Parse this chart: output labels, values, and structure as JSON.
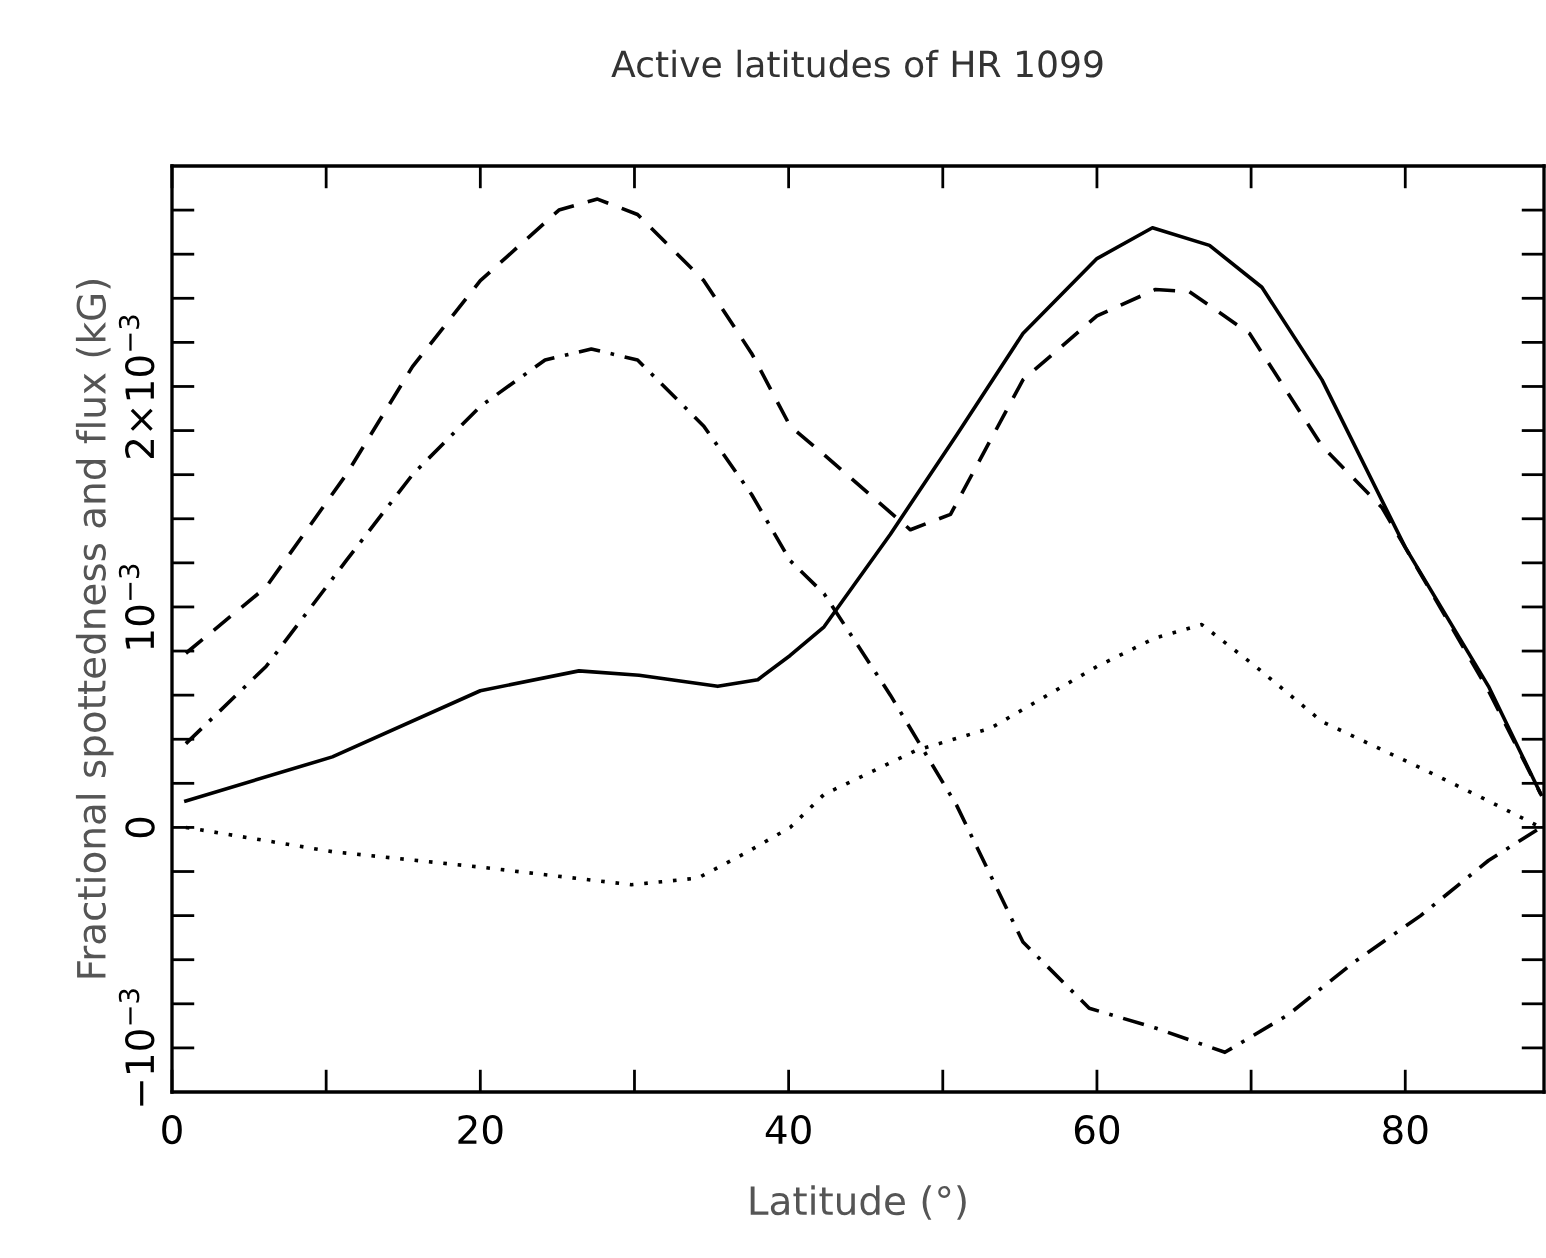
{
  "chart_data": {
    "type": "line",
    "title": "Active latitudes of HR 1099",
    "xlabel": "Latitude (°)",
    "ylabel": "Fractional spottedness and flux (kG)",
    "xlim": [
      0,
      89
    ],
    "xticks": [
      0,
      {
        "value": 10,
        "label": null
      },
      20,
      {
        "value": 30,
        "label": null
      },
      40,
      {
        "value": 50,
        "label": null
      },
      60,
      {
        "value": 70,
        "label": null
      },
      80
    ],
    "ylim": [
      -0.0012,
      0.003
    ],
    "yticks": [
      {
        "value": -0.001,
        "label": "−10$^{−3}$"
      },
      {
        "value": -0.0008,
        "label": null
      },
      {
        "value": -0.0006,
        "label": null
      },
      {
        "value": -0.0004,
        "label": null
      },
      {
        "value": -0.0002,
        "label": null
      },
      {
        "value": 0,
        "label": "0"
      },
      {
        "value": 0.0002,
        "label": null
      },
      {
        "value": 0.0004,
        "label": null
      },
      {
        "value": 0.0006,
        "label": null
      },
      {
        "value": 0.0008,
        "label": null
      },
      {
        "value": 0.001,
        "label": "10$^{−3}$"
      },
      {
        "value": 0.0012,
        "label": null
      },
      {
        "value": 0.0014,
        "label": null
      },
      {
        "value": 0.0016,
        "label": null
      },
      {
        "value": 0.0018,
        "label": null
      },
      {
        "value": 0.002,
        "label": "2×10$^{−3}$"
      },
      {
        "value": 0.0022,
        "label": null
      },
      {
        "value": 0.0024,
        "label": null
      },
      {
        "value": 0.0026,
        "label": null
      },
      {
        "value": 0.0028,
        "label": null
      }
    ],
    "marker": "none",
    "series": [
      {
        "color": "#000000",
        "line_style": "solid",
        "x": [
          0.9,
          10.4,
          20,
          26.4,
          30.3,
          35.4,
          38,
          40.1,
          42.3,
          46.6,
          50.9,
          55.2,
          60,
          63.6,
          67.3,
          70.7,
          74.6,
          80,
          85.4,
          88.8
        ],
        "values": [
          0.00012,
          0.00032,
          0.00062,
          0.00071,
          0.00069,
          0.00064,
          0.00067,
          0.00078,
          0.00091,
          0.00133,
          0.00178,
          0.00224,
          0.00258,
          0.00272,
          0.00264,
          0.00245,
          0.00203,
          0.00127,
          0.00064,
          0.00015
        ]
      },
      {
        "color": "#000000",
        "line_style": "dashed",
        "x": [
          0.9,
          6.1,
          11.3,
          15.6,
          20,
          25.1,
          27.6,
          30.2,
          34.5,
          37.6,
          40.1,
          42.3,
          47.9,
          50.5,
          55.2,
          60,
          63.8,
          66,
          69.9,
          74.6,
          78.5,
          80,
          85.4,
          88.8
        ],
        "values": [
          0.00079,
          0.00109,
          0.0016,
          0.00209,
          0.00248,
          0.0028,
          0.00285,
          0.00278,
          0.00248,
          0.00215,
          0.00182,
          0.00169,
          0.00135,
          0.00142,
          0.00203,
          0.00232,
          0.00244,
          0.00243,
          0.00224,
          0.00173,
          0.00145,
          0.00127,
          0.00062,
          0.00015
        ]
      },
      {
        "color": "#000000",
        "line_style": "dashdot",
        "x": [
          0.9,
          6.1,
          11.3,
          15.6,
          20,
          24.2,
          27.2,
          30.2,
          34.5,
          37.6,
          40.1,
          42.3,
          46.6,
          50.9,
          55.2,
          59.5,
          63.8,
          68.3,
          72.4,
          76.7,
          81,
          85.4,
          88.8
        ],
        "values": [
          0.00038,
          0.00073,
          0.00121,
          0.0016,
          0.00191,
          0.00212,
          0.00217,
          0.00212,
          0.00182,
          0.00151,
          0.00121,
          0.00106,
          0.0006,
          0.0001,
          -0.00052,
          -0.00082,
          -0.00091,
          -0.00102,
          -0.00085,
          -0.00061,
          -0.0004,
          -0.00015,
          0
        ]
      },
      {
        "color": "#000000",
        "line_style": "dotted",
        "x": [
          0.9,
          10.4,
          20,
          29.8,
          34.1,
          37.1,
          40.1,
          42.3,
          48.3,
          53.1,
          60,
          63.8,
          66.8,
          70.3,
          74.6,
          81,
          85.4,
          88.8
        ],
        "values": [
          0,
          -0.00011,
          -0.00018,
          -0.00026,
          -0.00023,
          -0.00012,
          0,
          0.00015,
          0.00035,
          0.00045,
          0.00073,
          0.00086,
          0.00092,
          0.00073,
          0.00048,
          0.00027,
          0.00012,
          0
        ]
      }
    ]
  }
}
